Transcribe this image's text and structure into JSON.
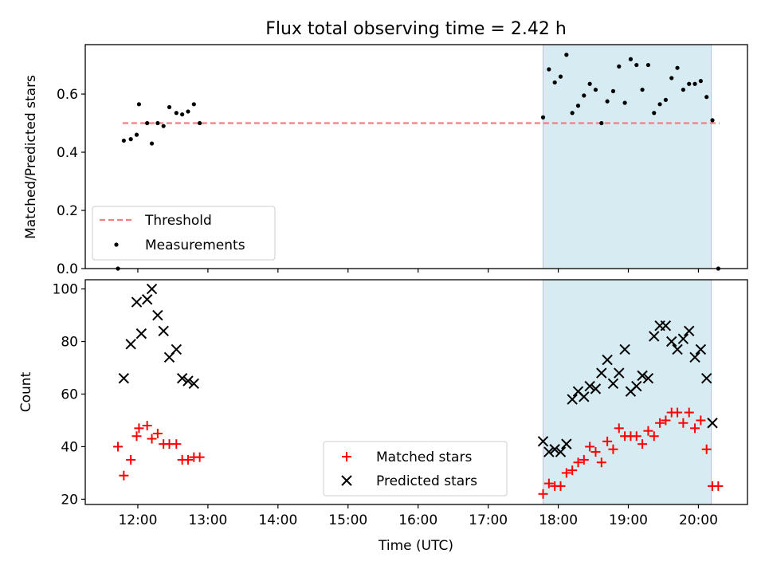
{
  "chart_data": [
    {
      "type": "scatter",
      "title": "Flux total observing time = 2.42 h",
      "xlabel": "",
      "ylabel": "Matched/Predicted stars",
      "xlim": [
        "11:15",
        "20:42"
      ],
      "ylim": [
        0,
        0.77
      ],
      "grid": false,
      "yticks": [
        0,
        0.2,
        0.4,
        0.6
      ],
      "ytick_labels": [
        "0.0",
        "0.2",
        "0.4",
        "0.6"
      ],
      "shaded_region": {
        "x": [
          "17:47",
          "20:11"
        ],
        "color": "#add8e6"
      },
      "legend": {
        "placement": "lower-left",
        "entries": [
          "Threshold",
          "Measurements"
        ]
      },
      "series": [
        {
          "name": "Threshold",
          "kind": "dashed-line",
          "color": "#f08080",
          "x": [
            "11:47",
            "20:18"
          ],
          "y": [
            0.5,
            0.5
          ]
        },
        {
          "name": "Measurements",
          "kind": "dot",
          "color": "#000000",
          "x": [
            "11:43",
            "11:48",
            "11:54",
            "11:59",
            "12:01",
            "12:08",
            "12:12",
            "12:17",
            "12:22",
            "12:27",
            "12:33",
            "12:38",
            "12:43",
            "12:48",
            "12:53",
            "17:47",
            "17:52",
            "17:57",
            "18:02",
            "18:07",
            "18:12",
            "18:17",
            "18:22",
            "18:27",
            "18:32",
            "18:37",
            "18:42",
            "18:47",
            "18:52",
            "18:57",
            "19:02",
            "19:07",
            "19:12",
            "19:17",
            "19:22",
            "19:27",
            "19:32",
            "19:37",
            "19:42",
            "19:47",
            "19:52",
            "19:57",
            "20:02",
            "20:07",
            "20:12",
            "20:17"
          ],
          "y": [
            0.0,
            0.44,
            0.445,
            0.46,
            0.565,
            0.5,
            0.43,
            0.5,
            0.49,
            0.555,
            0.535,
            0.53,
            0.54,
            0.565,
            0.5,
            0.52,
            0.685,
            0.64,
            0.66,
            0.735,
            0.535,
            0.56,
            0.595,
            0.635,
            0.615,
            0.5,
            0.575,
            0.61,
            0.695,
            0.57,
            0.72,
            0.7,
            0.615,
            0.7,
            0.535,
            0.565,
            0.58,
            0.655,
            0.69,
            0.615,
            0.635,
            0.635,
            0.645,
            0.59,
            0.51,
            0.0
          ]
        }
      ]
    },
    {
      "type": "scatter",
      "title": "",
      "xlabel": "Time (UTC)",
      "ylabel": "Count",
      "xlim": [
        "11:15",
        "20:42"
      ],
      "ylim": [
        18,
        103.5
      ],
      "grid": false,
      "xticks": [
        "12:00",
        "13:00",
        "14:00",
        "15:00",
        "16:00",
        "17:00",
        "18:00",
        "19:00",
        "20:00"
      ],
      "yticks": [
        20,
        40,
        60,
        80,
        100
      ],
      "ytick_labels": [
        "20",
        "40",
        "60",
        "80",
        "100"
      ],
      "shaded_region": {
        "x": [
          "17:47",
          "20:11"
        ],
        "color": "#add8e6"
      },
      "legend": {
        "placement": "lower-center",
        "entries": [
          "Matched stars",
          "Predicted stars"
        ]
      },
      "series": [
        {
          "name": "Matched stars",
          "marker": "plus",
          "color": "#ff0000",
          "x": [
            "11:43",
            "11:48",
            "11:54",
            "11:59",
            "12:01",
            "12:08",
            "12:12",
            "12:17",
            "12:22",
            "12:27",
            "12:33",
            "12:38",
            "12:43",
            "12:48",
            "12:53",
            "17:47",
            "17:52",
            "17:57",
            "18:02",
            "18:07",
            "18:12",
            "18:17",
            "18:22",
            "18:27",
            "18:32",
            "18:37",
            "18:42",
            "18:47",
            "18:52",
            "18:57",
            "19:02",
            "19:07",
            "19:12",
            "19:17",
            "19:22",
            "19:27",
            "19:32",
            "19:37",
            "19:42",
            "19:47",
            "19:52",
            "19:57",
            "20:02",
            "20:07",
            "20:12",
            "20:17"
          ],
          "y": [
            40,
            29,
            35,
            44,
            47,
            48,
            43,
            45,
            41,
            41,
            41,
            35,
            35,
            36,
            36,
            22,
            26,
            25,
            25,
            30,
            31,
            34,
            35,
            40,
            38,
            34,
            42,
            39,
            47,
            44,
            44,
            44,
            41,
            46,
            44,
            49,
            50,
            53,
            53,
            49,
            53,
            47,
            50,
            39,
            25,
            25
          ]
        },
        {
          "name": "Predicted stars",
          "marker": "x",
          "color": "#000000",
          "x": [
            "11:48",
            "11:54",
            "11:59",
            "12:03",
            "12:08",
            "12:12",
            "12:17",
            "12:22",
            "12:27",
            "12:33",
            "12:38",
            "12:43",
            "12:48",
            "17:47",
            "17:52",
            "17:57",
            "18:02",
            "18:07",
            "18:12",
            "18:17",
            "18:22",
            "18:27",
            "18:32",
            "18:37",
            "18:42",
            "18:47",
            "18:52",
            "18:57",
            "19:02",
            "19:07",
            "19:12",
            "19:17",
            "19:22",
            "19:27",
            "19:32",
            "19:37",
            "19:42",
            "19:47",
            "19:52",
            "19:57",
            "20:02",
            "20:07",
            "20:12"
          ],
          "y": [
            66,
            79,
            95,
            83,
            96,
            100,
            90,
            84,
            74,
            77,
            66,
            65,
            64,
            42,
            38,
            39,
            38,
            41,
            58,
            61,
            59,
            63,
            62,
            68,
            73,
            64,
            68,
            77,
            61,
            63,
            67,
            66,
            82,
            86,
            86,
            80,
            77,
            81,
            84,
            74,
            77,
            66,
            49
          ]
        }
      ]
    }
  ]
}
